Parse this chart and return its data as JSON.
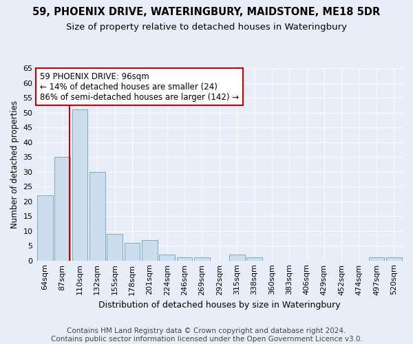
{
  "title": "59, PHOENIX DRIVE, WATERINGBURY, MAIDSTONE, ME18 5DR",
  "subtitle": "Size of property relative to detached houses in Wateringbury",
  "xlabel": "Distribution of detached houses by size in Wateringbury",
  "ylabel": "Number of detached properties",
  "categories": [
    "64sqm",
    "87sqm",
    "110sqm",
    "132sqm",
    "155sqm",
    "178sqm",
    "201sqm",
    "224sqm",
    "246sqm",
    "269sqm",
    "292sqm",
    "315sqm",
    "338sqm",
    "360sqm",
    "383sqm",
    "406sqm",
    "429sqm",
    "452sqm",
    "474sqm",
    "497sqm",
    "520sqm"
  ],
  "values": [
    22,
    35,
    51,
    30,
    9,
    6,
    7,
    2,
    1,
    1,
    0,
    2,
    1,
    0,
    0,
    0,
    0,
    0,
    0,
    1,
    1
  ],
  "bar_color": "#ccdded",
  "bar_edge_color": "#7aaac8",
  "bar_edge_width": 0.7,
  "vline_color": "#cc0000",
  "vline_pos": 1.42,
  "annotation_text": "59 PHOENIX DRIVE: 96sqm\n← 14% of detached houses are smaller (24)\n86% of semi-detached houses are larger (142) →",
  "annotation_box_color": "#ffffff",
  "annotation_box_edge": "#cc0000",
  "ylim": [
    0,
    65
  ],
  "yticks": [
    0,
    5,
    10,
    15,
    20,
    25,
    30,
    35,
    40,
    45,
    50,
    55,
    60,
    65
  ],
  "background_color": "#e8eef8",
  "plot_bg_color": "#e8eef8",
  "footer": "Contains HM Land Registry data © Crown copyright and database right 2024.\nContains public sector information licensed under the Open Government Licence v3.0.",
  "title_fontsize": 10.5,
  "subtitle_fontsize": 9.5,
  "xlabel_fontsize": 9,
  "ylabel_fontsize": 8.5,
  "tick_fontsize": 8,
  "annotation_fontsize": 8.5,
  "footer_fontsize": 7.5
}
